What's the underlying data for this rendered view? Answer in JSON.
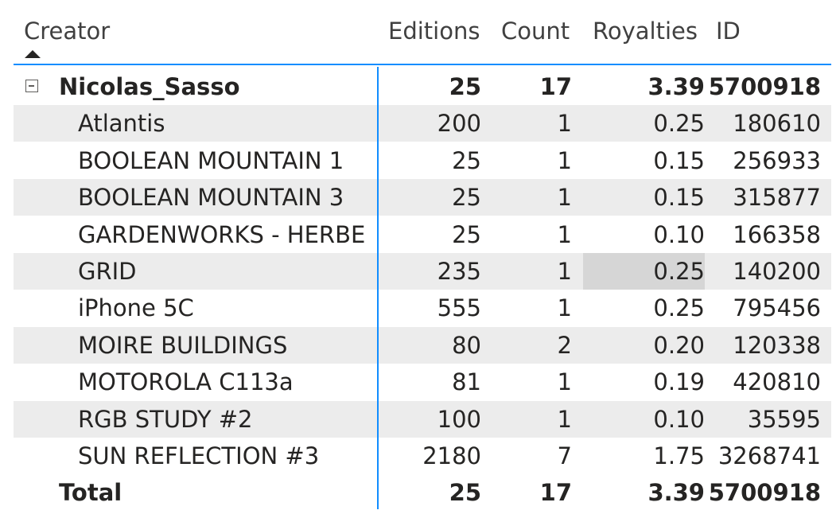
{
  "columns": {
    "creator": "Creator",
    "editions": "Editions",
    "count": "Count",
    "royalties": "Royalties",
    "id": "ID"
  },
  "group": {
    "name": "Nicolas_Sasso",
    "editions": "25",
    "count": "17",
    "royalties": "3.39",
    "id": "5700918"
  },
  "rows": [
    {
      "name": "Atlantis",
      "editions": "200",
      "count": "1",
      "royalties": "0.25",
      "id": "180610"
    },
    {
      "name": "BOOLEAN MOUNTAIN 1",
      "editions": "25",
      "count": "1",
      "royalties": "0.15",
      "id": "256933"
    },
    {
      "name": "BOOLEAN MOUNTAIN 3",
      "editions": "25",
      "count": "1",
      "royalties": "0.15",
      "id": "315877"
    },
    {
      "name": "GARDENWORKS - HERBE",
      "editions": "25",
      "count": "1",
      "royalties": "0.10",
      "id": "166358"
    },
    {
      "name": "GRID",
      "editions": "235",
      "count": "1",
      "royalties": "0.25",
      "id": "140200"
    },
    {
      "name": "iPhone 5C",
      "editions": "555",
      "count": "1",
      "royalties": "0.25",
      "id": "795456"
    },
    {
      "name": "MOIRE BUILDINGS",
      "editions": "80",
      "count": "2",
      "royalties": "0.20",
      "id": "120338"
    },
    {
      "name": "MOTOROLA C113a",
      "editions": "81",
      "count": "1",
      "royalties": "0.19",
      "id": "420810"
    },
    {
      "name": "RGB STUDY #2",
      "editions": "100",
      "count": "1",
      "royalties": "0.10",
      "id": "35595"
    },
    {
      "name": "SUN REFLECTION #3",
      "editions": "2180",
      "count": "7",
      "royalties": "1.75",
      "id": "3268741"
    }
  ],
  "total": {
    "label": "Total",
    "editions": "25",
    "count": "17",
    "royalties": "3.39",
    "id": "5700918"
  },
  "sort": {
    "column": "Creator",
    "direction": "ascending"
  },
  "colors": {
    "accent": "#118dff",
    "band": "#ececec",
    "selected": "#d6d6d6"
  }
}
